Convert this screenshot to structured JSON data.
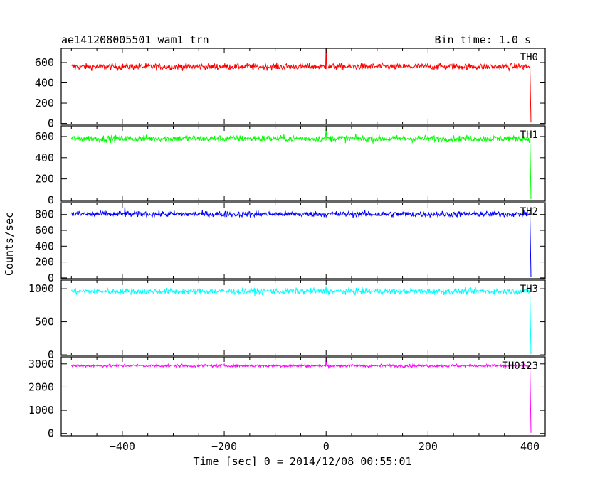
{
  "chart_data": {
    "type": "line",
    "title_left": "ae141208005501_wam1_trn",
    "title_right": "Bin time: 1.0 s",
    "xlabel": "Time [sec] 0 = 2014/12/08 00:55:01",
    "ylabel": "Counts/sec",
    "xlim": [
      -520,
      430
    ],
    "x_ticks": [
      -400,
      -200,
      0,
      200,
      400
    ],
    "x_range_data": [
      -500,
      400
    ],
    "series": [
      {
        "name": "TH0",
        "color": "#ff0000",
        "ylim": [
          -10,
          740
        ],
        "y_ticks": [
          0,
          200,
          400,
          600
        ],
        "mean": 560,
        "noise": 55,
        "spike_x": 0,
        "spike_y": 780,
        "end_x": 402,
        "end_y": 10
      },
      {
        "name": "TH1",
        "color": "#00ff00",
        "ylim": [
          -10,
          700
        ],
        "y_ticks": [
          0,
          200,
          400,
          600
        ],
        "mean": 580,
        "noise": 55,
        "spike_x": 0,
        "spike_y": 680,
        "end_x": 402,
        "end_y": 10
      },
      {
        "name": "TH2",
        "color": "#0000ff",
        "ylim": [
          -10,
          950
        ],
        "y_ticks": [
          0,
          200,
          400,
          600,
          800
        ],
        "mean": 805,
        "noise": 65,
        "spike_x": -395,
        "spike_y": 900,
        "end_x": 402,
        "end_y": 10
      },
      {
        "name": "TH3",
        "color": "#00ffff",
        "ylim": [
          -10,
          1130
        ],
        "y_ticks": [
          0,
          500,
          1000
        ],
        "mean": 960,
        "noise": 80,
        "spike_x": 0,
        "spike_y": 1040,
        "end_x": 402,
        "end_y": 10
      },
      {
        "name": "TH0123",
        "color": "#ff00ff",
        "ylim": [
          -100,
          3300
        ],
        "y_ticks": [
          0,
          1000,
          2000,
          3000
        ],
        "mean": 2920,
        "noise": 110,
        "spike_x": 0,
        "spike_y": 3250,
        "end_x": 402,
        "end_y": 30
      }
    ]
  }
}
